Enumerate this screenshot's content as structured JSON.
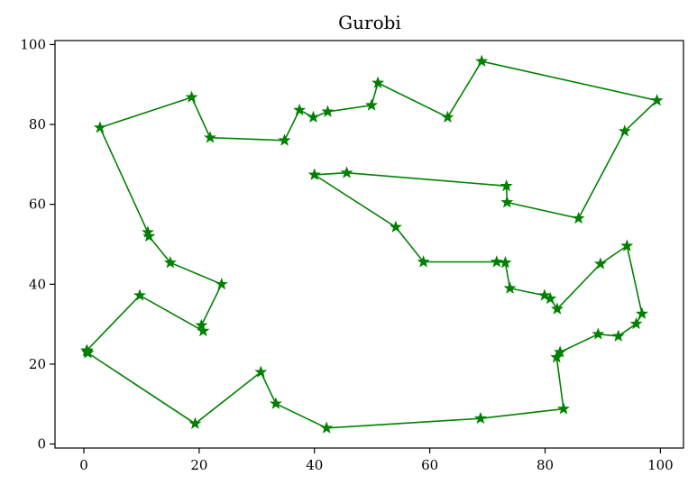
{
  "chart_data": {
    "type": "line",
    "title": "Gurobi",
    "xlabel": "",
    "ylabel": "",
    "xlim": [
      -5,
      104
    ],
    "ylim": [
      -1,
      101
    ],
    "xticks": [
      0,
      20,
      40,
      60,
      80,
      100
    ],
    "yticks": [
      0,
      20,
      40,
      60,
      80,
      100
    ],
    "grid": false,
    "marker": "star",
    "color": "#008000",
    "series": [
      {
        "points": [
          [
            0.6,
            23.2
          ],
          [
            0.7,
            22.8
          ],
          [
            19.3,
            5.1
          ],
          [
            30.7,
            18.0
          ],
          [
            33.3,
            10.1
          ],
          [
            42.1,
            4.0
          ],
          [
            68.8,
            6.4
          ],
          [
            83.2,
            8.8
          ],
          [
            82.0,
            21.7
          ],
          [
            82.6,
            23.0
          ],
          [
            89.2,
            27.5
          ],
          [
            92.7,
            27.0
          ],
          [
            95.8,
            30.1
          ],
          [
            96.8,
            32.6
          ],
          [
            94.2,
            49.6
          ],
          [
            89.6,
            45.1
          ],
          [
            82.1,
            33.8
          ],
          [
            80.9,
            36.4
          ],
          [
            79.9,
            37.2
          ],
          [
            73.9,
            39.0
          ],
          [
            73.1,
            45.4
          ],
          [
            71.6,
            45.6
          ],
          [
            58.9,
            45.6
          ],
          [
            54.1,
            54.3
          ],
          [
            40.0,
            67.4
          ],
          [
            45.6,
            67.9
          ],
          [
            73.3,
            64.6
          ],
          [
            73.4,
            60.5
          ],
          [
            85.8,
            56.5
          ],
          [
            93.8,
            78.3
          ],
          [
            99.4,
            86.0
          ],
          [
            69.0,
            95.8
          ],
          [
            63.1,
            81.8
          ],
          [
            51.0,
            90.4
          ],
          [
            49.9,
            84.8
          ],
          [
            42.3,
            83.2
          ],
          [
            39.8,
            81.8
          ],
          [
            37.4,
            83.6
          ],
          [
            34.8,
            76.0
          ],
          [
            21.9,
            76.7
          ],
          [
            18.7,
            86.8
          ],
          [
            2.8,
            79.2
          ],
          [
            11.1,
            53.0
          ],
          [
            11.3,
            52.0
          ],
          [
            15.0,
            45.4
          ],
          [
            23.9,
            40.0
          ],
          [
            20.4,
            29.7
          ],
          [
            20.7,
            28.3
          ],
          [
            9.7,
            37.2
          ],
          [
            0.5,
            23.4
          ]
        ]
      }
    ]
  }
}
